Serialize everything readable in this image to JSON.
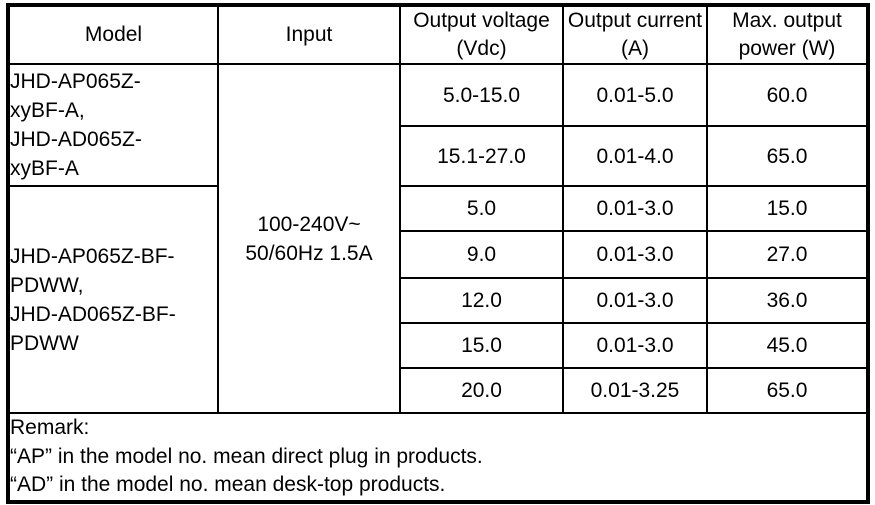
{
  "page": {
    "background_color": "#ffffff",
    "border_color": "#000000",
    "text_color": "#000000"
  },
  "spec_table": {
    "columns": [
      "Model",
      "Input",
      "Output voltage (Vdc)",
      "Output current (A)",
      "Max. output power (W)"
    ],
    "model_groups": [
      {
        "name": "JHD-AP065Z-xyBF-A, JHD-AD065Z-xyBF-A",
        "lines": [
          "JHD-AP065Z-",
          "xyBF-A,",
          "JHD-AD065Z-",
          "xyBF-A"
        ]
      },
      {
        "name": "JHD-AP065Z-BF-PDWW, JHD-AD065Z-BF-PDWW",
        "lines": [
          "JHD-AP065Z-BF-",
          "PDWW,",
          "JHD-AD065Z-BF-",
          "PDWW"
        ]
      }
    ],
    "input": {
      "value": "100-240V~ 50/60Hz 1.5A",
      "lines": [
        "100-240V~",
        "50/60Hz 1.5A"
      ]
    },
    "rows": [
      {
        "voltage": "5.0-15.0",
        "current": "0.01-5.0",
        "power": "60.0"
      },
      {
        "voltage": "15.1-27.0",
        "current": "0.01-4.0",
        "power": "65.0"
      },
      {
        "voltage": "5.0",
        "current": "0.01-3.0",
        "power": "15.0"
      },
      {
        "voltage": "9.0",
        "current": "0.01-3.0",
        "power": "27.0"
      },
      {
        "voltage": "12.0",
        "current": "0.01-3.0",
        "power": "36.0"
      },
      {
        "voltage": "15.0",
        "current": "0.01-3.0",
        "power": "45.0"
      },
      {
        "voltage": "20.0",
        "current": "0.01-3.25",
        "power": "65.0"
      }
    ],
    "remark": {
      "lines": [
        "Remark:",
        "“AP” in the model no. mean direct plug in products.",
        "“AD” in the model no. mean desk-top products."
      ]
    }
  }
}
